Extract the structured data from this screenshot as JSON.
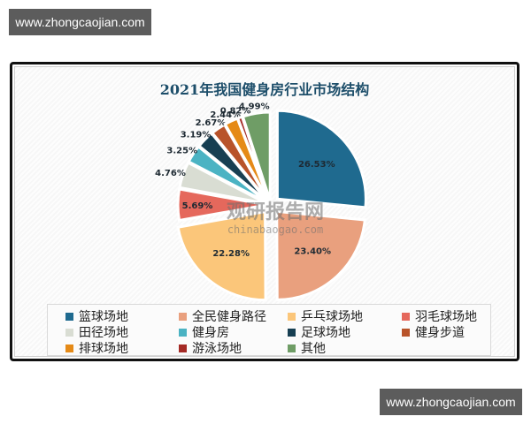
{
  "watermarks": {
    "top": "www.zhongcaojian.com",
    "bottom": "www.zhongcaojian.com"
  },
  "chart_watermark": {
    "cn": "观研报告网",
    "en": "chinabaogao.com"
  },
  "chart_data": {
    "type": "pie",
    "title": "2021年我国健身房行业市场结构",
    "exploded": true,
    "legend_position": "bottom",
    "categories": [
      "篮球场地",
      "全民健身路径",
      "乒乓球场地",
      "羽毛球场地",
      "田径场地",
      "健身房",
      "足球场地",
      "健身步道",
      "排球场地",
      "游泳场地",
      "其他"
    ],
    "values": [
      26.53,
      23.4,
      22.28,
      5.69,
      4.76,
      3.25,
      3.19,
      2.67,
      2.44,
      0.82,
      4.99
    ],
    "labels": [
      "26.53%",
      "23.40%",
      "22.28%",
      "5.69%",
      "4.76%",
      "3.25%",
      "3.19%",
      "2.67%",
      "2.44%",
      "0.82%",
      "4.99%"
    ],
    "colors": [
      "#1f6a8f",
      "#e9a07e",
      "#fbc67a",
      "#e5685c",
      "#d9ddd3",
      "#4bb3c3",
      "#173f52",
      "#b8532a",
      "#e58a17",
      "#a42a25",
      "#6f9d66"
    ]
  },
  "legend": {
    "items": [
      {
        "label": "篮球场地",
        "color": "#1f6a8f"
      },
      {
        "label": "全民健身路径",
        "color": "#e9a07e"
      },
      {
        "label": "乒乓球场地",
        "color": "#fbc67a"
      },
      {
        "label": "羽毛球场地",
        "color": "#e5685c"
      },
      {
        "label": "田径场地",
        "color": "#d9ddd3"
      },
      {
        "label": "健身房",
        "color": "#4bb3c3"
      },
      {
        "label": "足球场地",
        "color": "#173f52"
      },
      {
        "label": "健身步道",
        "color": "#b8532a"
      },
      {
        "label": "排球场地",
        "color": "#e58a17"
      },
      {
        "label": "游泳场地",
        "color": "#a42a25"
      },
      {
        "label": "其他",
        "color": "#6f9d66"
      }
    ]
  }
}
